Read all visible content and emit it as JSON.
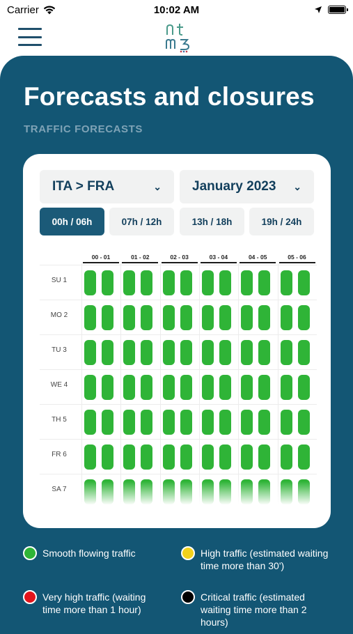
{
  "status_bar": {
    "carrier": "Carrier",
    "time": "10:02 AM"
  },
  "header": {
    "menu_icon": "hamburger-menu-icon",
    "logo_icon": "ntmb-logo-icon",
    "title": "Forecasts and closures",
    "subtitle": "TRAFFIC FORECASTS"
  },
  "filters": {
    "direction": "ITA > FRA",
    "month": "January 2023"
  },
  "time_ranges": [
    {
      "label": "00h / 06h",
      "active": true
    },
    {
      "label": "07h / 12h",
      "active": false
    },
    {
      "label": "13h / 18h",
      "active": false
    },
    {
      "label": "19h / 24h",
      "active": false
    }
  ],
  "grid": {
    "hours": [
      "00 - 01",
      "01 - 02",
      "02 - 03",
      "03 - 04",
      "04 - 05",
      "05 - 06"
    ],
    "days": [
      "SU 1",
      "MO 2",
      "TU 3",
      "WE 4",
      "TH 5",
      "FR 6",
      "SA 7"
    ],
    "status": "smooth"
  },
  "colors": {
    "smooth": "#2fb437",
    "high": "#f3d21c",
    "very_high": "#e2141b",
    "critical": "#000000",
    "panel": "#135674"
  },
  "legend": [
    {
      "text": "Smooth flowing traffic",
      "color": "#2fb437"
    },
    {
      "text": "High traffic (estimated waiting time more than 30')",
      "color": "#f3d21c"
    },
    {
      "text": "Very high traffic (waiting time more than 1 hour)",
      "color": "#e2141b"
    },
    {
      "text": "Critical traffic (estimated waiting time more than 2 hours)",
      "color": "#000000"
    }
  ]
}
